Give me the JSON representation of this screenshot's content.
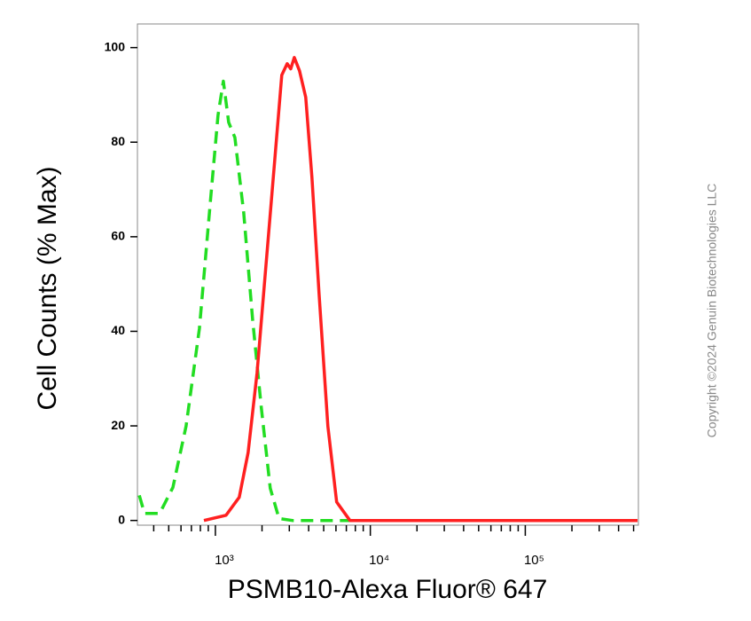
{
  "chart_data": {
    "type": "line",
    "xlabel": "PSMB10-Alexa Fluor® 647",
    "ylabel": "Cell Counts (% Max)",
    "annotation": "Copyright ©2024 Genuin Biotechnologies LLC",
    "xscale": "log",
    "xlim": [
      314,
      537000
    ],
    "ylim": [
      -1,
      105
    ],
    "xticks": [
      {
        "value": 1000,
        "label": "10³"
      },
      {
        "value": 10000,
        "label": "10⁴"
      },
      {
        "value": 100000,
        "label": "10⁵"
      }
    ],
    "xminorticks": [
      400,
      500,
      600,
      700,
      800,
      900,
      2000,
      3000,
      4000,
      5000,
      6000,
      7000,
      8000,
      9000,
      20000,
      30000,
      40000,
      50000,
      60000,
      70000,
      80000,
      90000,
      200000,
      300000,
      400000,
      500000
    ],
    "yticks": [
      0,
      20,
      40,
      60,
      80,
      100
    ],
    "grid": false,
    "series": [
      {
        "color": "#22dd22",
        "dashed": true,
        "x": [
          323,
          349,
          437,
          532,
          647,
          789,
          936,
          1040,
          1126,
          1218,
          1336,
          1525,
          1738,
          1982,
          2259,
          2576,
          3140,
          7890
        ],
        "values": [
          5.3,
          1.5,
          1.5,
          7,
          20,
          40.6,
          68.8,
          85.7,
          92.9,
          84.2,
          81,
          65,
          42.5,
          23.7,
          6.8,
          0.4,
          0,
          0
        ]
      },
      {
        "color": "#ff2020",
        "dashed": false,
        "x": [
          843,
          1171,
          1426,
          1626,
          1856,
          2119,
          2416,
          2683,
          2905,
          3063,
          3228,
          3493,
          3830,
          4199,
          4665,
          5322,
          6067,
          7390,
          530000
        ],
        "values": [
          0,
          1.1,
          4.9,
          14.3,
          31.2,
          53.8,
          76.3,
          94.2,
          96.6,
          95.5,
          97.9,
          95.1,
          89.5,
          72.6,
          48.1,
          19.9,
          3.9,
          0,
          0
        ]
      }
    ]
  }
}
